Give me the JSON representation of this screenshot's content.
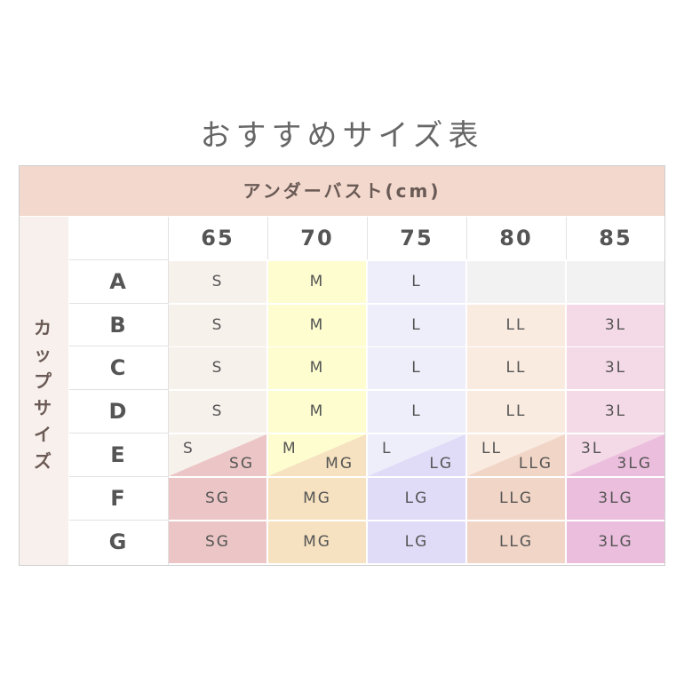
{
  "title": "おすすめサイズ表",
  "header_band": "アンダーバスト(cm)",
  "cup_label": "カップサイズ",
  "columns": [
    "65",
    "70",
    "75",
    "80",
    "85"
  ],
  "rows": [
    {
      "cup": "A",
      "cells": [
        {
          "t": "S",
          "c": "#f7f1ec"
        },
        {
          "t": "M",
          "c": "#fdfdd0"
        },
        {
          "t": "L",
          "c": "#eeeefb"
        },
        {
          "t": "",
          "c": "#f2f2f2"
        },
        {
          "t": "",
          "c": "#f2f2f2"
        }
      ]
    },
    {
      "cup": "B",
      "cells": [
        {
          "t": "S",
          "c": "#f7f1ec"
        },
        {
          "t": "M",
          "c": "#fdfdd0"
        },
        {
          "t": "L",
          "c": "#eeeefb"
        },
        {
          "t": "LL",
          "c": "#faebe0"
        },
        {
          "t": "3L",
          "c": "#f4d9e6"
        }
      ]
    },
    {
      "cup": "C",
      "cells": [
        {
          "t": "S",
          "c": "#f7f1ec"
        },
        {
          "t": "M",
          "c": "#fdfdd0"
        },
        {
          "t": "L",
          "c": "#eeeefb"
        },
        {
          "t": "LL",
          "c": "#faebe0"
        },
        {
          "t": "3L",
          "c": "#f4d9e6"
        }
      ]
    },
    {
      "cup": "D",
      "cells": [
        {
          "t": "S",
          "c": "#f7f1ec"
        },
        {
          "t": "M",
          "c": "#fdfdd0"
        },
        {
          "t": "L",
          "c": "#eeeefb"
        },
        {
          "t": "LL",
          "c": "#faebe0"
        },
        {
          "t": "3L",
          "c": "#f4d9e6"
        }
      ]
    },
    {
      "cup": "E",
      "cells": [
        {
          "t": "S",
          "t2": "SG",
          "c": "#f7f1ec",
          "c2": "#ecc6c6"
        },
        {
          "t": "M",
          "t2": "MG",
          "c": "#fdfdd0",
          "c2": "#f6e2c0"
        },
        {
          "t": "L",
          "t2": "LG",
          "c": "#eeeefb",
          "c2": "#e0dcf8"
        },
        {
          "t": "LL",
          "t2": "LLG",
          "c": "#faebe0",
          "c2": "#f1d5c6"
        },
        {
          "t": "3L",
          "t2": "3LG",
          "c": "#f4d9e6",
          "c2": "#ebbedd"
        }
      ]
    },
    {
      "cup": "F",
      "cells": [
        {
          "t": "SG",
          "c": "#ecc6c6"
        },
        {
          "t": "MG",
          "c": "#f6e2c0"
        },
        {
          "t": "LG",
          "c": "#e0dcf8"
        },
        {
          "t": "LLG",
          "c": "#f1d5c6"
        },
        {
          "t": "3LG",
          "c": "#ebbedd"
        }
      ]
    },
    {
      "cup": "G",
      "cells": [
        {
          "t": "SG",
          "c": "#ecc6c6"
        },
        {
          "t": "MG",
          "c": "#f6e2c0"
        },
        {
          "t": "LG",
          "c": "#e0dcf8"
        },
        {
          "t": "LLG",
          "c": "#f1d5c6"
        },
        {
          "t": "3LG",
          "c": "#ebbedd"
        }
      ]
    }
  ]
}
